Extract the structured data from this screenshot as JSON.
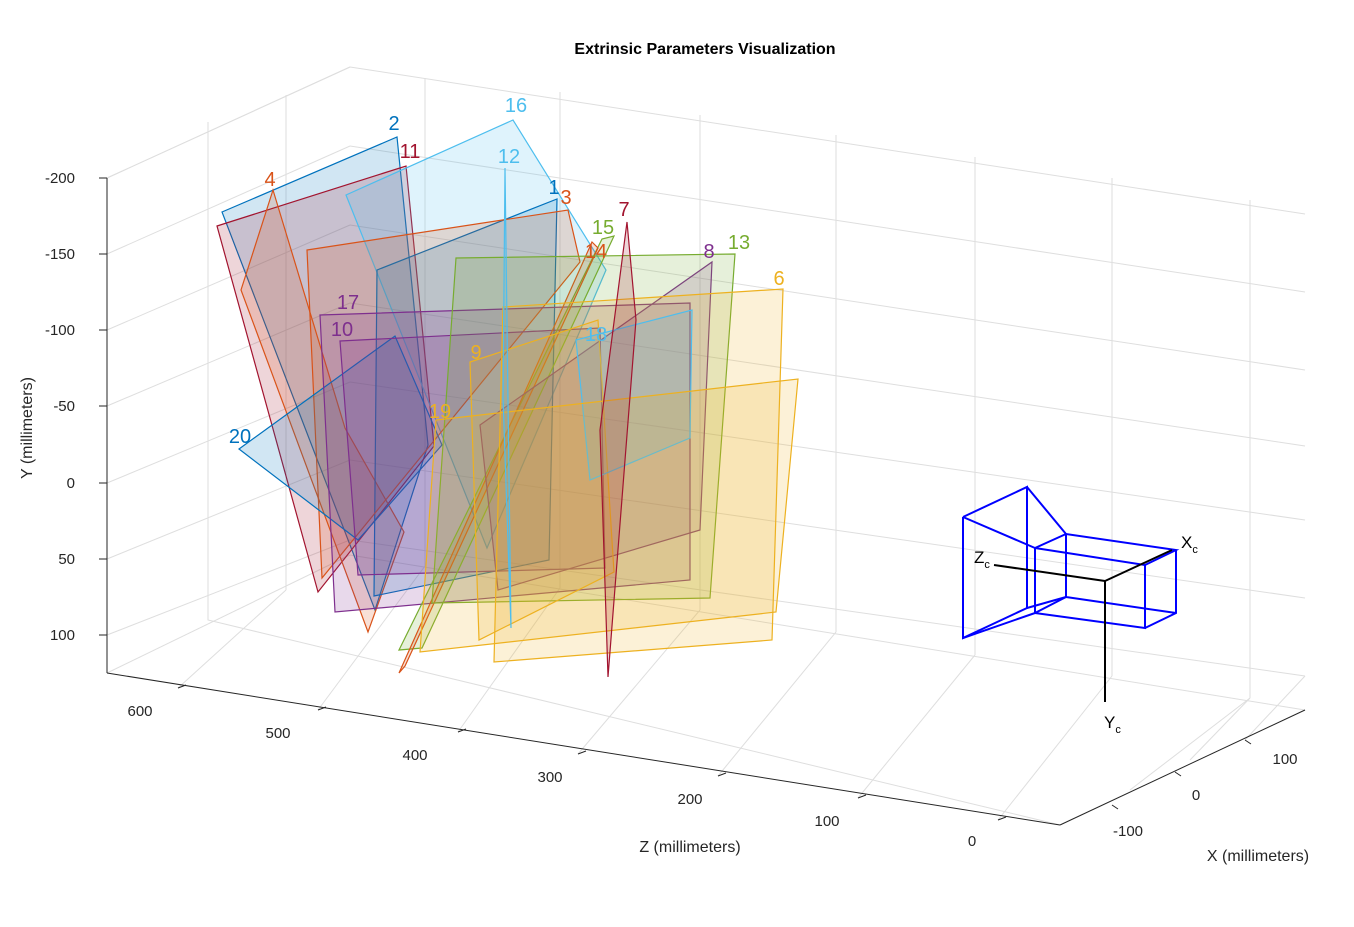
{
  "chart_data": {
    "type": "3d-plane-plot",
    "title": "Extrinsic Parameters Visualization",
    "xlabel": "X (millimeters)",
    "ylabel": "Y (millimeters)",
    "zlabel": "Z (millimeters)",
    "y_ticks": [
      "-200",
      "-150",
      "-100",
      "-50",
      "0",
      "50",
      "100"
    ],
    "z_ticks": [
      "600",
      "500",
      "400",
      "300",
      "200",
      "100",
      "0"
    ],
    "x_ticks": [
      "100",
      "0",
      "-100"
    ],
    "grid": true,
    "camera_axes": {
      "x": "X",
      "y": "Y",
      "z": "Z",
      "subscript": "c"
    },
    "boards": [
      {
        "id": "1",
        "color": "#0072BD"
      },
      {
        "id": "2",
        "color": "#0072BD"
      },
      {
        "id": "3",
        "color": "#D95319"
      },
      {
        "id": "4",
        "color": "#D95319"
      },
      {
        "id": "6",
        "color": "#EDB120"
      },
      {
        "id": "7",
        "color": "#A2142F"
      },
      {
        "id": "8",
        "color": "#7E2F8E"
      },
      {
        "id": "9",
        "color": "#EDB120"
      },
      {
        "id": "10",
        "color": "#7E2F8E"
      },
      {
        "id": "11",
        "color": "#A2142F"
      },
      {
        "id": "12",
        "color": "#4DBEEE"
      },
      {
        "id": "13",
        "color": "#77AC30"
      },
      {
        "id": "14",
        "color": "#D95319"
      },
      {
        "id": "15",
        "color": "#77AC30"
      },
      {
        "id": "16",
        "color": "#4DBEEE"
      },
      {
        "id": "17",
        "color": "#7E2F8E"
      },
      {
        "id": "18",
        "color": "#4DBEEE"
      },
      {
        "id": "19",
        "color": "#EDB120"
      },
      {
        "id": "20",
        "color": "#0072BD"
      }
    ]
  }
}
